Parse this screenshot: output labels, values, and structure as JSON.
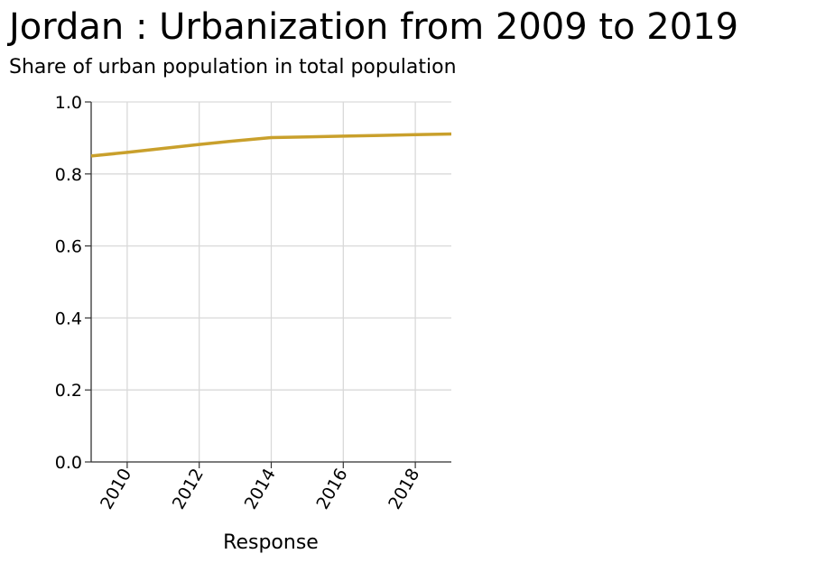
{
  "chart_data": {
    "type": "line",
    "title": "Jordan : Urbanization from 2009 to 2019",
    "subtitle": "Share of urban population in total population",
    "xlabel": "Response",
    "ylabel": "",
    "xlim": [
      2009,
      2019
    ],
    "ylim": [
      0,
      1
    ],
    "x_ticks": [
      "2010",
      "2012",
      "2014",
      "2016",
      "2018"
    ],
    "y_ticks": [
      "0.0",
      "0.2",
      "0.4",
      "0.6",
      "0.8",
      "1.0"
    ],
    "grid": true,
    "legend": "none",
    "series": [
      {
        "color": "#c9a02c",
        "x": [
          2009,
          2010,
          2011,
          2012,
          2013,
          2014,
          2015,
          2016,
          2017,
          2018,
          2019
        ],
        "y": [
          0.85,
          0.86,
          0.871,
          0.882,
          0.892,
          0.901,
          0.903,
          0.905,
          0.907,
          0.909,
          0.911
        ]
      }
    ]
  }
}
